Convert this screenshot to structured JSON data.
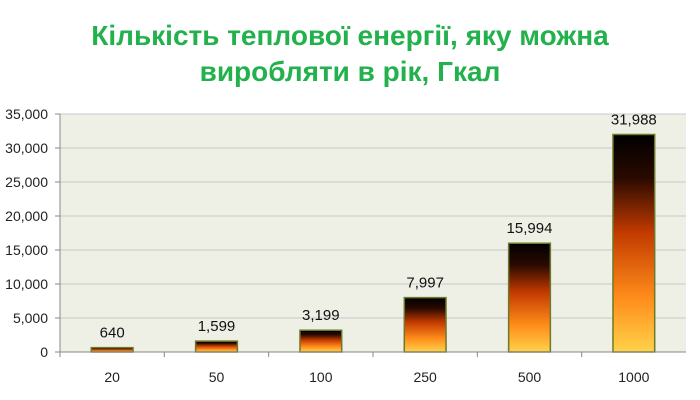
{
  "title_lines": [
    "Кількість теплової енергії, яку можна",
    "виробляти в рік, Гкал"
  ],
  "colors": {
    "title": "#22b14c",
    "plot_bg": "#eef0e6",
    "bar_border": "#6b7a2a",
    "grid": "#c8c8c8"
  },
  "chart_data": {
    "type": "bar",
    "title": "Кількість теплової енергії, яку можна виробляти в рік, Гкал",
    "xlabel": "",
    "ylabel": "",
    "categories": [
      "20",
      "50",
      "100",
      "250",
      "500",
      "1000"
    ],
    "values": [
      640,
      1599,
      3199,
      7997,
      15994,
      31988
    ],
    "data_labels": [
      "640",
      "1,599",
      "3,199",
      "7,997",
      "15,994",
      "31,988"
    ],
    "ylim": [
      0,
      35000
    ],
    "yticks": [
      0,
      5000,
      10000,
      15000,
      20000,
      25000,
      30000,
      35000
    ],
    "ytick_labels": [
      "0",
      "5,000",
      "10,000",
      "15,000",
      "20,000",
      "25,000",
      "30,000",
      "35,000"
    ],
    "grid": true,
    "legend": "none"
  }
}
